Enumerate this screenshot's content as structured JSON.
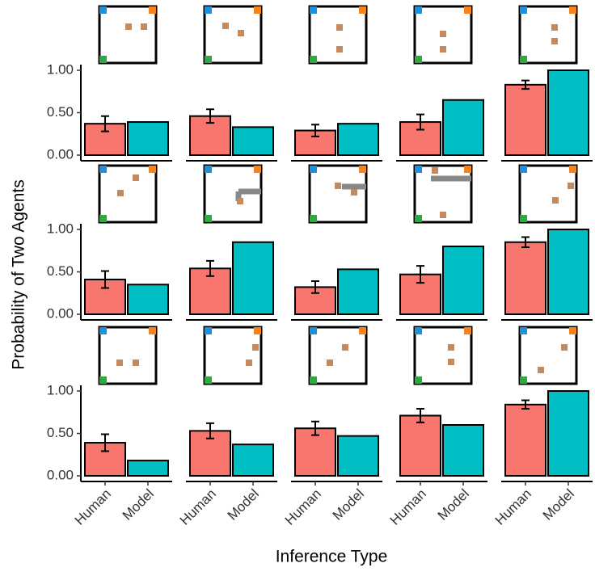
{
  "chart_data": {
    "type": "bar_grid",
    "ylabel": "Probability of Two Agents",
    "xlabel": "Inference Type",
    "categories": [
      "Human",
      "Model"
    ],
    "colors": [
      "#F8766D",
      "#00BFC4"
    ],
    "ylim": [
      0,
      1
    ],
    "yticks": [
      {
        "value": 0,
        "label": "0.00"
      },
      {
        "value": 0.5,
        "label": "0.50"
      },
      {
        "value": 1,
        "label": "1.00"
      }
    ],
    "panels": [
      {
        "values": [
          0.37,
          0.39
        ],
        "error": 0.09
      },
      {
        "values": [
          0.46,
          0.33
        ],
        "error": 0.08
      },
      {
        "values": [
          0.29,
          0.37
        ],
        "error": 0.07
      },
      {
        "values": [
          0.39,
          0.65
        ],
        "error": 0.09
      },
      {
        "values": [
          0.83,
          1.0
        ],
        "error": 0.05
      },
      {
        "values": [
          0.41,
          0.35
        ],
        "error": 0.1
      },
      {
        "values": [
          0.54,
          0.85
        ],
        "error": 0.09
      },
      {
        "values": [
          0.32,
          0.53
        ],
        "error": 0.07
      },
      {
        "values": [
          0.47,
          0.8
        ],
        "error": 0.1
      },
      {
        "values": [
          0.85,
          1.0
        ],
        "error": 0.06
      },
      {
        "values": [
          0.39,
          0.18
        ],
        "error": 0.1
      },
      {
        "values": [
          0.53,
          0.37
        ],
        "error": 0.09
      },
      {
        "values": [
          0.56,
          0.47
        ],
        "error": 0.08
      },
      {
        "values": [
          0.71,
          0.6
        ],
        "error": 0.08
      },
      {
        "values": [
          0.84,
          1.0
        ],
        "error": 0.05
      }
    ]
  }
}
